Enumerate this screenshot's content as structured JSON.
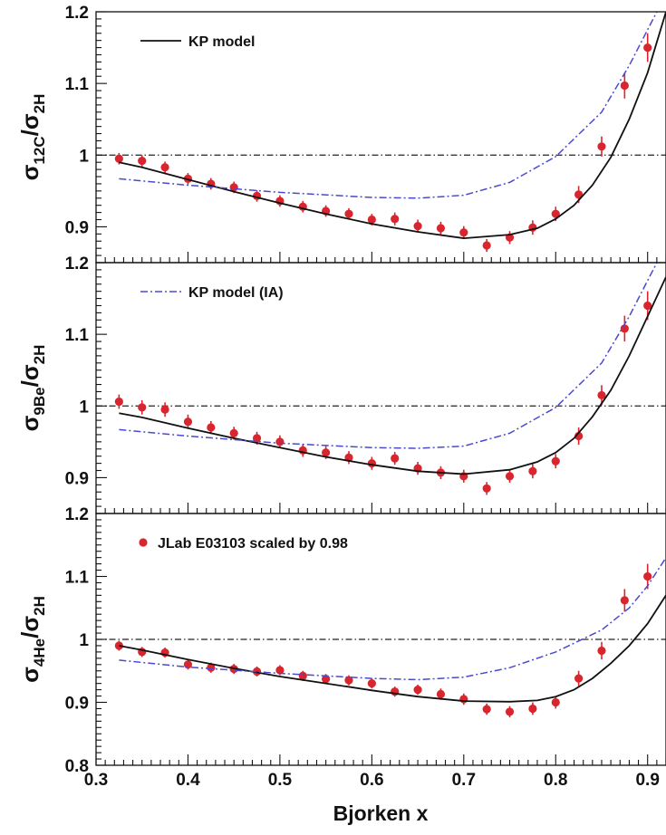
{
  "chart_data": [
    {
      "type": "scatter",
      "panel": "12C",
      "ylabel": {
        "num": "σ",
        "num_sub": "12C",
        "sep": "/",
        "den": "σ",
        "den_sub": "2H"
      },
      "legend": {
        "label": "KP model",
        "style": "solid",
        "placement": "top-left"
      },
      "xlim": [
        0.3,
        0.92
      ],
      "ylim": [
        0.85,
        1.2
      ],
      "yticks": [
        "0.9",
        "1",
        "1.1",
        "1.2"
      ],
      "reference_line": 1.0,
      "series": [
        {
          "kind": "points",
          "x": [
            0.325,
            0.35,
            0.375,
            0.4,
            0.425,
            0.45,
            0.475,
            0.5,
            0.525,
            0.55,
            0.575,
            0.6,
            0.625,
            0.65,
            0.675,
            0.7,
            0.725,
            0.75,
            0.775,
            0.8,
            0.825,
            0.85,
            0.875,
            0.9
          ],
          "y": [
            0.995,
            0.992,
            0.983,
            0.967,
            0.96,
            0.955,
            0.943,
            0.936,
            0.928,
            0.922,
            0.918,
            0.91,
            0.911,
            0.901,
            0.898,
            0.892,
            0.874,
            0.885,
            0.899,
            0.918,
            0.945,
            1.012,
            1.097,
            1.15
          ],
          "err": [
            0.008,
            0.008,
            0.008,
            0.008,
            0.008,
            0.008,
            0.008,
            0.008,
            0.008,
            0.008,
            0.008,
            0.008,
            0.009,
            0.009,
            0.009,
            0.009,
            0.009,
            0.009,
            0.01,
            0.01,
            0.012,
            0.014,
            0.018,
            0.02
          ]
        },
        {
          "kind": "line",
          "style": "solid",
          "x": [
            0.325,
            0.35,
            0.4,
            0.45,
            0.5,
            0.55,
            0.6,
            0.65,
            0.7,
            0.75,
            0.78,
            0.8,
            0.82,
            0.84,
            0.86,
            0.88,
            0.9,
            0.92
          ],
          "y": [
            0.99,
            0.983,
            0.966,
            0.949,
            0.933,
            0.918,
            0.904,
            0.893,
            0.884,
            0.889,
            0.898,
            0.911,
            0.93,
            0.958,
            0.997,
            1.05,
            1.115,
            1.2
          ]
        },
        {
          "kind": "line",
          "style": "dashdot",
          "x": [
            0.325,
            0.4,
            0.5,
            0.6,
            0.65,
            0.7,
            0.75,
            0.8,
            0.85,
            0.88,
            0.9,
            0.91
          ],
          "y": [
            0.967,
            0.958,
            0.948,
            0.941,
            0.94,
            0.944,
            0.962,
            0.998,
            1.06,
            1.125,
            1.175,
            1.2
          ]
        }
      ]
    },
    {
      "type": "scatter",
      "panel": "9Be",
      "ylabel": {
        "num": "σ",
        "num_sub": "9Be",
        "sep": "/",
        "den": "σ",
        "den_sub": "2H"
      },
      "legend": {
        "label": "KP model (IA)",
        "style": "dashdot",
        "placement": "top-left"
      },
      "xlim": [
        0.3,
        0.92
      ],
      "ylim": [
        0.85,
        1.2
      ],
      "yticks": [
        "0.9",
        "1",
        "1.1",
        "1.2"
      ],
      "reference_line": 1.0,
      "series": [
        {
          "kind": "points",
          "x": [
            0.325,
            0.35,
            0.375,
            0.4,
            0.425,
            0.45,
            0.475,
            0.5,
            0.525,
            0.55,
            0.575,
            0.6,
            0.625,
            0.65,
            0.675,
            0.7,
            0.725,
            0.75,
            0.775,
            0.8,
            0.825,
            0.85,
            0.875,
            0.9
          ],
          "y": [
            1.006,
            0.998,
            0.995,
            0.978,
            0.97,
            0.962,
            0.955,
            0.95,
            0.938,
            0.935,
            0.928,
            0.92,
            0.927,
            0.913,
            0.907,
            0.902,
            0.885,
            0.902,
            0.909,
            0.923,
            0.958,
            1.015,
            1.108,
            1.14
          ],
          "err": [
            0.01,
            0.01,
            0.01,
            0.01,
            0.009,
            0.009,
            0.009,
            0.009,
            0.009,
            0.009,
            0.009,
            0.009,
            0.009,
            0.009,
            0.009,
            0.009,
            0.009,
            0.009,
            0.01,
            0.01,
            0.012,
            0.014,
            0.018,
            0.02
          ]
        },
        {
          "kind": "line",
          "style": "solid",
          "x": [
            0.325,
            0.35,
            0.4,
            0.45,
            0.5,
            0.55,
            0.6,
            0.65,
            0.7,
            0.75,
            0.78,
            0.8,
            0.82,
            0.84,
            0.86,
            0.88,
            0.9,
            0.92
          ],
          "y": [
            0.99,
            0.984,
            0.969,
            0.955,
            0.942,
            0.929,
            0.918,
            0.909,
            0.905,
            0.911,
            0.922,
            0.935,
            0.955,
            0.985,
            1.022,
            1.07,
            1.125,
            1.18
          ]
        },
        {
          "kind": "line",
          "style": "dashdot",
          "x": [
            0.325,
            0.4,
            0.5,
            0.6,
            0.65,
            0.7,
            0.75,
            0.8,
            0.85,
            0.88,
            0.9,
            0.91
          ],
          "y": [
            0.967,
            0.958,
            0.948,
            0.942,
            0.941,
            0.944,
            0.962,
            0.998,
            1.06,
            1.125,
            1.175,
            1.2
          ]
        }
      ]
    },
    {
      "type": "scatter",
      "panel": "4He",
      "ylabel": {
        "num": "σ",
        "num_sub": "4He",
        "sep": "/",
        "den": "σ",
        "den_sub": "2H"
      },
      "legend": {
        "label": "JLab E03103 scaled by 0.98",
        "style": "marker",
        "placement": "top-left"
      },
      "xlabel": "Bjorken x",
      "xlim": [
        0.3,
        0.92
      ],
      "ylim": [
        0.8,
        1.2
      ],
      "xticks": [
        "0.3",
        "0.4",
        "0.5",
        "0.6",
        "0.7",
        "0.8",
        "0.9"
      ],
      "yticks": [
        "0.8",
        "0.9",
        "1",
        "1.1",
        "1.2"
      ],
      "reference_line": 1.0,
      "series": [
        {
          "kind": "points",
          "x": [
            0.325,
            0.35,
            0.375,
            0.4,
            0.425,
            0.45,
            0.475,
            0.5,
            0.525,
            0.55,
            0.575,
            0.6,
            0.625,
            0.65,
            0.675,
            0.7,
            0.725,
            0.75,
            0.775,
            0.8,
            0.825,
            0.85,
            0.875,
            0.9
          ],
          "y": [
            0.99,
            0.98,
            0.979,
            0.96,
            0.955,
            0.953,
            0.949,
            0.951,
            0.942,
            0.937,
            0.935,
            0.93,
            0.917,
            0.92,
            0.913,
            0.905,
            0.889,
            0.885,
            0.89,
            0.9,
            0.938,
            0.982,
            1.062,
            1.1
          ],
          "err": [
            0.008,
            0.008,
            0.008,
            0.008,
            0.008,
            0.008,
            0.008,
            0.008,
            0.008,
            0.008,
            0.008,
            0.008,
            0.008,
            0.008,
            0.009,
            0.009,
            0.009,
            0.009,
            0.01,
            0.01,
            0.012,
            0.014,
            0.018,
            0.02
          ]
        },
        {
          "kind": "line",
          "style": "solid",
          "x": [
            0.325,
            0.35,
            0.4,
            0.45,
            0.5,
            0.55,
            0.6,
            0.65,
            0.7,
            0.75,
            0.78,
            0.8,
            0.82,
            0.84,
            0.86,
            0.88,
            0.9,
            0.92
          ],
          "y": [
            0.99,
            0.983,
            0.968,
            0.954,
            0.941,
            0.93,
            0.919,
            0.909,
            0.902,
            0.901,
            0.903,
            0.909,
            0.92,
            0.938,
            0.962,
            0.99,
            1.025,
            1.07
          ]
        },
        {
          "kind": "line",
          "style": "dashdot",
          "x": [
            0.325,
            0.4,
            0.5,
            0.6,
            0.65,
            0.7,
            0.75,
            0.8,
            0.85,
            0.88,
            0.9,
            0.92
          ],
          "y": [
            0.967,
            0.956,
            0.946,
            0.938,
            0.936,
            0.94,
            0.955,
            0.98,
            1.015,
            1.05,
            1.085,
            1.13
          ]
        }
      ]
    }
  ],
  "colors": {
    "points": "#d9262e",
    "solid_line": "#111111",
    "dashdot_line": "#4a4ad0",
    "reference_line": "#222222",
    "frame": "#111111"
  }
}
